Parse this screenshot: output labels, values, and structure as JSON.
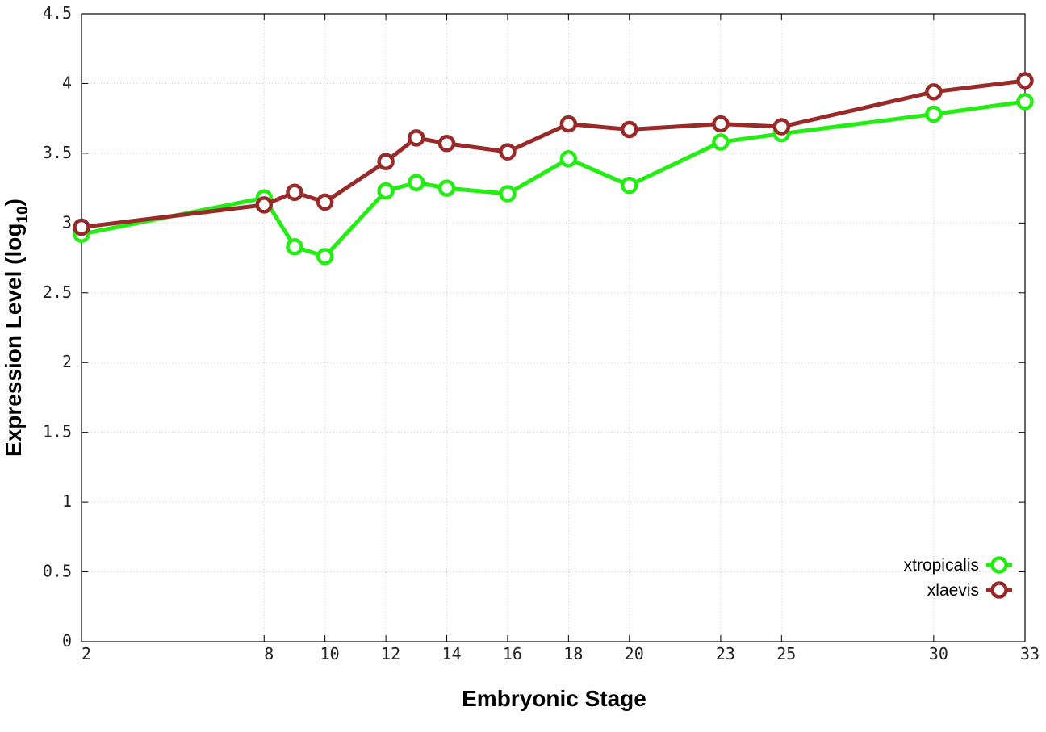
{
  "chart_data": {
    "type": "line",
    "xlabel": "Embryonic Stage",
    "ylabel": "Expression Level (log",
    "ylabel_subscript": "10",
    "ylabel_close": ")",
    "x_ticks": [
      2,
      8,
      10,
      12,
      14,
      16,
      18,
      20,
      23,
      25,
      30,
      33
    ],
    "x_tick_labels": [
      "2",
      "8",
      "10",
      "12",
      "14",
      "16",
      "18",
      "20",
      "23",
      "25",
      "30",
      "33"
    ],
    "y_ticks": [
      0,
      0.5,
      1,
      1.5,
      2,
      2.5,
      3,
      3.5,
      4,
      4.5
    ],
    "y_tick_labels": [
      "0",
      "0.5",
      "1",
      "1.5",
      "2",
      "2.5",
      "3",
      "3.5",
      "4",
      "4.5"
    ],
    "xlim": [
      2,
      33
    ],
    "ylim": [
      0,
      4.5
    ],
    "grid": true,
    "legend_position": "bottom-right",
    "x": [
      2,
      8,
      9,
      10,
      12,
      13,
      14,
      16,
      18,
      20,
      23,
      25,
      30,
      33
    ],
    "series": [
      {
        "name": "xtropicalis",
        "color": "#22ee11",
        "values": [
          2.92,
          3.18,
          2.83,
          2.76,
          3.23,
          3.29,
          3.25,
          3.21,
          3.46,
          3.27,
          3.58,
          3.64,
          3.78,
          3.87
        ]
      },
      {
        "name": "xlaevis",
        "color": "#992a2a",
        "values": [
          2.97,
          3.13,
          3.22,
          3.15,
          3.44,
          3.61,
          3.57,
          3.51,
          3.71,
          3.67,
          3.71,
          3.69,
          3.94,
          4.02
        ]
      }
    ]
  }
}
